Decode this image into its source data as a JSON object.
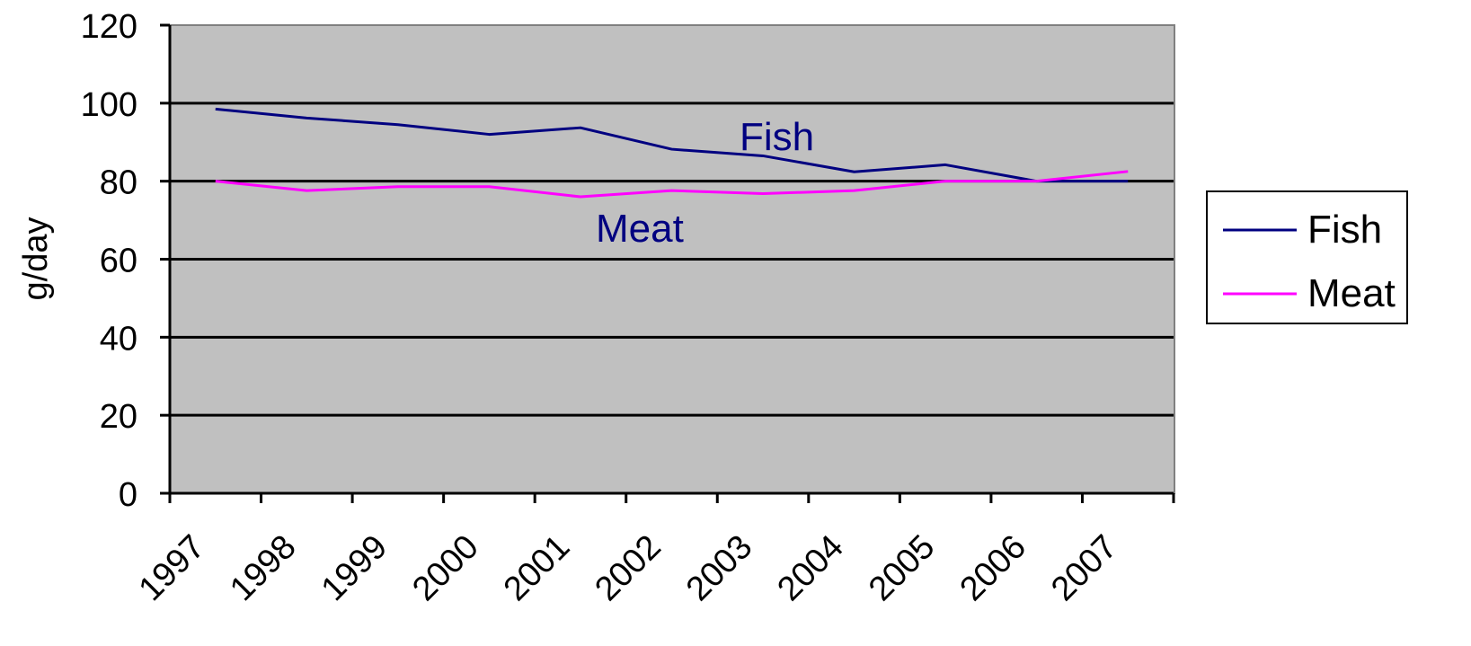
{
  "chart_data": {
    "type": "line",
    "categories": [
      "1997",
      "1998",
      "1999",
      "2000",
      "2001",
      "2002",
      "2003",
      "2004",
      "2005",
      "2006",
      "2007"
    ],
    "series": [
      {
        "name": "Fish",
        "values": [
          98.5,
          96.2,
          94.5,
          92.0,
          93.7,
          88.2,
          86.5,
          82.4,
          84.2,
          80.0,
          80.0
        ],
        "color": "#000080"
      },
      {
        "name": "Meat",
        "values": [
          80.0,
          77.6,
          78.6,
          78.6,
          76.0,
          77.6,
          76.8,
          77.6,
          80.0,
          80.0,
          82.5
        ],
        "color": "#ff00ff"
      }
    ],
    "ylabel": "g/day",
    "xlabel": "",
    "ylim": [
      0,
      120
    ],
    "yticks": [
      "0",
      "20",
      "40",
      "60",
      "80",
      "100",
      "120"
    ],
    "annotations": [
      {
        "text": "Fish",
        "color": "#000080"
      },
      {
        "text": "Meat",
        "color": "#000080"
      }
    ],
    "plot_background": "#c0c0c0",
    "grid": true,
    "legend": {
      "position": "right",
      "entries": [
        "Fish",
        "Meat"
      ]
    }
  }
}
